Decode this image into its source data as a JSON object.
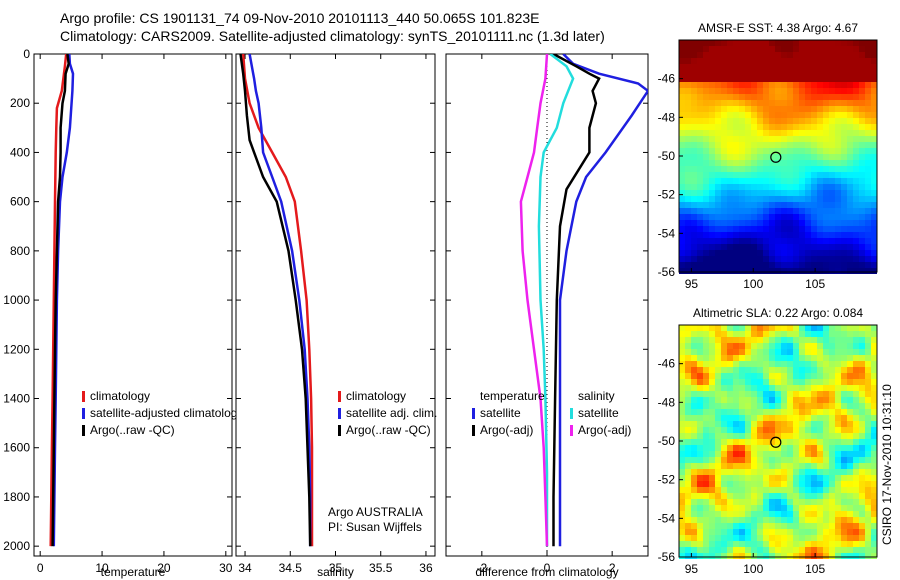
{
  "header": {
    "line1": "Argo profile: CS 1901131_74 09-Nov-2010 20101113_440 50.065S 101.823E",
    "line2": "Climatology: CARS2009. Satellite-adjusted climatology: synTS_20101111.nc (1.3d later)"
  },
  "chart_data": [
    {
      "type": "line",
      "panel": "temperature",
      "xlabel": "temperature",
      "ylabel": "",
      "xlim": [
        -1,
        31
      ],
      "ylim": [
        2040,
        0
      ],
      "y_inverted": true,
      "x_ticks": [
        0,
        10,
        20,
        30
      ],
      "y_ticks": [
        0,
        200,
        400,
        600,
        800,
        1000,
        1200,
        1400,
        1600,
        1800,
        2000
      ],
      "legend": [
        "climatology",
        "satellite-adjusted climatolog",
        "Argo(..raw -QC)"
      ],
      "legend_placement": "lower-right",
      "series": [
        {
          "name": "climatology",
          "color": "#e41a1c",
          "points": [
            [
              4.2,
              0
            ],
            [
              4.0,
              50
            ],
            [
              3.5,
              150
            ],
            [
              2.7,
              220
            ],
            [
              2.6,
              300
            ],
            [
              2.5,
              400
            ],
            [
              2.4,
              600
            ],
            [
              2.3,
              800
            ],
            [
              2.2,
              1000
            ],
            [
              2.1,
              1200
            ],
            [
              2.0,
              1400
            ],
            [
              1.9,
              1600
            ],
            [
              1.8,
              1800
            ],
            [
              1.7,
              2000
            ]
          ]
        },
        {
          "name": "satellite-adjusted climatolog",
          "color": "#1f1fe0",
          "points": [
            [
              4.7,
              0
            ],
            [
              4.8,
              40
            ],
            [
              5.3,
              80
            ],
            [
              5.2,
              150
            ],
            [
              4.8,
              300
            ],
            [
              4.3,
              400
            ],
            [
              3.6,
              500
            ],
            [
              3.2,
              600
            ],
            [
              2.9,
              800
            ],
            [
              2.7,
              1000
            ],
            [
              2.6,
              1200
            ],
            [
              2.5,
              1400
            ],
            [
              2.4,
              1600
            ],
            [
              2.3,
              1800
            ],
            [
              2.2,
              2000
            ]
          ]
        },
        {
          "name": "Argo(..raw -QC)",
          "color": "#000000",
          "points": [
            [
              4.4,
              0
            ],
            [
              4.6,
              40
            ],
            [
              4.1,
              80
            ],
            [
              4.0,
              150
            ],
            [
              3.6,
              200
            ],
            [
              3.3,
              300
            ],
            [
              3.3,
              400
            ],
            [
              3.2,
              500
            ],
            [
              2.9,
              600
            ],
            [
              2.7,
              800
            ],
            [
              2.5,
              1000
            ],
            [
              2.4,
              1200
            ],
            [
              2.3,
              1400
            ],
            [
              2.2,
              1600
            ],
            [
              2.1,
              1800
            ],
            [
              2.0,
              2000
            ]
          ]
        }
      ]
    },
    {
      "type": "line",
      "panel": "salinity",
      "xlabel": "salinity",
      "ylabel": "",
      "xlim": [
        33.9,
        36.1
      ],
      "ylim": [
        2040,
        0
      ],
      "y_inverted": true,
      "x_ticks": [
        34,
        34.5,
        35,
        35.5,
        36
      ],
      "legend": [
        "climatology",
        "satellite adj. clim.",
        "Argo(..raw -QC)"
      ],
      "legend_placement": "lower-right",
      "annotations": [
        "Argo AUSTRALIA",
        "PI: Susan Wijffels"
      ],
      "series": [
        {
          "name": "climatology",
          "color": "#e41a1c",
          "points": [
            [
              33.98,
              0
            ],
            [
              34.0,
              100
            ],
            [
              34.05,
              200
            ],
            [
              34.15,
              300
            ],
            [
              34.3,
              400
            ],
            [
              34.45,
              500
            ],
            [
              34.55,
              600
            ],
            [
              34.62,
              800
            ],
            [
              34.68,
              1000
            ],
            [
              34.71,
              1200
            ],
            [
              34.73,
              1400
            ],
            [
              34.74,
              1600
            ],
            [
              34.74,
              1800
            ],
            [
              34.74,
              2000
            ]
          ]
        },
        {
          "name": "satellite adj. clim.",
          "color": "#1f1fe0",
          "points": [
            [
              34.05,
              0
            ],
            [
              34.1,
              100
            ],
            [
              34.12,
              150
            ],
            [
              34.15,
              200
            ],
            [
              34.18,
              300
            ],
            [
              34.2,
              400
            ],
            [
              34.3,
              500
            ],
            [
              34.4,
              600
            ],
            [
              34.52,
              800
            ],
            [
              34.6,
              1000
            ],
            [
              34.66,
              1200
            ],
            [
              34.69,
              1400
            ],
            [
              34.71,
              1600
            ],
            [
              34.72,
              1800
            ],
            [
              34.72,
              2000
            ]
          ]
        },
        {
          "name": "Argo(..raw -QC)",
          "color": "#000000",
          "points": [
            [
              33.95,
              0
            ],
            [
              33.98,
              80
            ],
            [
              34.0,
              150
            ],
            [
              34.02,
              250
            ],
            [
              34.05,
              350
            ],
            [
              34.1,
              400
            ],
            [
              34.2,
              500
            ],
            [
              34.35,
              600
            ],
            [
              34.48,
              800
            ],
            [
              34.56,
              1000
            ],
            [
              34.63,
              1200
            ],
            [
              34.67,
              1400
            ],
            [
              34.69,
              1600
            ],
            [
              34.71,
              1800
            ],
            [
              34.72,
              2000
            ]
          ]
        }
      ]
    },
    {
      "type": "line",
      "panel": "difference",
      "xlabel": "difference from climatology",
      "ylabel": "",
      "xlim": [
        -3.1,
        3.1
      ],
      "ylim": [
        2040,
        0
      ],
      "y_inverted": true,
      "x_ticks": [
        -2,
        0,
        2
      ],
      "legend_groups": [
        {
          "title": "temperature",
          "items": [
            "satellite",
            "Argo(-adj)"
          ]
        },
        {
          "title": "salinity",
          "items": [
            "satellite",
            "Argo(-adj)"
          ]
        }
      ],
      "legend_placement": "lower-center",
      "series": [
        {
          "name": "temperature satellite",
          "color": "#1f1fe0",
          "points": [
            [
              0.5,
              0
            ],
            [
              0.8,
              40
            ],
            [
              1.6,
              80
            ],
            [
              2.8,
              120
            ],
            [
              3.1,
              150
            ],
            [
              2.6,
              250
            ],
            [
              1.8,
              400
            ],
            [
              1.2,
              500
            ],
            [
              0.9,
              600
            ],
            [
              0.6,
              800
            ],
            [
              0.4,
              1000
            ],
            [
              0.4,
              1200
            ],
            [
              0.4,
              1400
            ],
            [
              0.4,
              1600
            ],
            [
              0.4,
              1800
            ],
            [
              0.4,
              2000
            ]
          ]
        },
        {
          "name": "temperature Argo(-adj)",
          "color": "#000000",
          "points": [
            [
              0.2,
              0
            ],
            [
              0.9,
              50
            ],
            [
              1.3,
              80
            ],
            [
              1.6,
              100
            ],
            [
              1.4,
              150
            ],
            [
              1.5,
              200
            ],
            [
              1.3,
              300
            ],
            [
              1.3,
              400
            ],
            [
              0.6,
              550
            ],
            [
              0.4,
              700
            ],
            [
              0.3,
              1000
            ],
            [
              0.25,
              1400
            ],
            [
              0.2,
              1800
            ],
            [
              0.2,
              2000
            ]
          ]
        },
        {
          "name": "salinity satellite",
          "color": "#22dddd",
          "points": [
            [
              0.1,
              0
            ],
            [
              0.6,
              50
            ],
            [
              0.8,
              100
            ],
            [
              0.5,
              200
            ],
            [
              0.3,
              300
            ],
            [
              -0.1,
              400
            ],
            [
              -0.2,
              500
            ],
            [
              -0.25,
              700
            ],
            [
              -0.2,
              1000
            ],
            [
              -0.1,
              1200
            ],
            [
              -0.05,
              1400
            ],
            [
              0.0,
              1700
            ],
            [
              0.0,
              2000
            ]
          ]
        },
        {
          "name": "salinity Argo(-adj)",
          "color": "#ee22ee",
          "points": [
            [
              0.0,
              0
            ],
            [
              -0.05,
              100
            ],
            [
              -0.2,
              200
            ],
            [
              -0.3,
              300
            ],
            [
              -0.4,
              400
            ],
            [
              -0.6,
              500
            ],
            [
              -0.8,
              600
            ],
            [
              -0.75,
              800
            ],
            [
              -0.6,
              1000
            ],
            [
              -0.4,
              1200
            ],
            [
              -0.2,
              1400
            ],
            [
              -0.1,
              1600
            ],
            [
              -0.05,
              1800
            ],
            [
              0.0,
              2000
            ]
          ]
        }
      ]
    },
    {
      "type": "heatmap",
      "panel": "sst",
      "title": "AMSR-E SST: 4.38 Argo: 4.67",
      "xlim": [
        94,
        110
      ],
      "ylim": [
        -56,
        -44
      ],
      "x_ticks": [
        95,
        100,
        105
      ],
      "y_ticks": [
        -46,
        -48,
        -50,
        -52,
        -54,
        -56
      ],
      "marker": {
        "lon": 101.823,
        "lat": -50.065
      }
    },
    {
      "type": "heatmap",
      "panel": "sla",
      "title": "Altimetric SLA: 0.22 Argo: 0.084",
      "xlim": [
        94,
        110
      ],
      "ylim": [
        -56,
        -44
      ],
      "x_ticks": [
        95,
        100,
        105
      ],
      "y_ticks": [
        -46,
        -48,
        -50,
        -52,
        -54,
        -56
      ],
      "marker": {
        "lon": 101.823,
        "lat": -50.065
      }
    }
  ],
  "footer_stamp": "CSIRO 17-Nov-2010 10:31:10"
}
